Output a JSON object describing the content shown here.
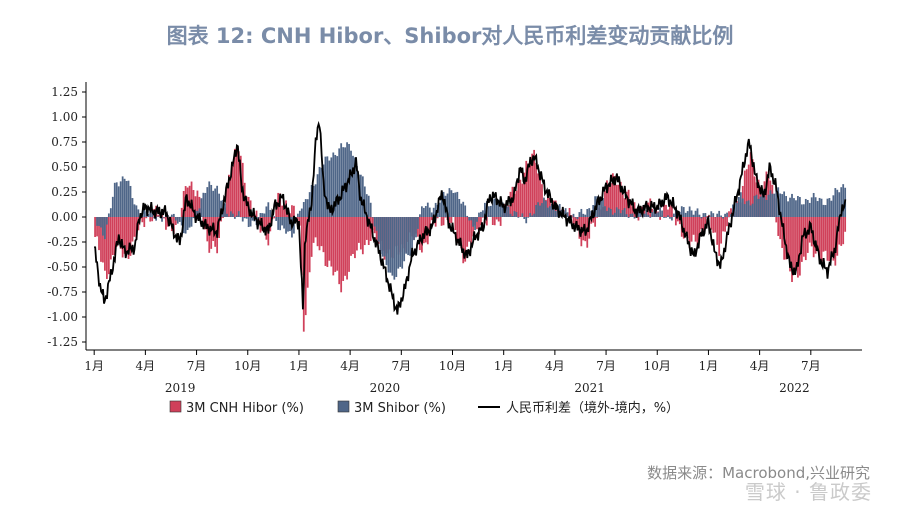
{
  "title": "图表 12:   CNH Hibor、Shibor对人民币利差变动贡献比例",
  "source": "数据来源：Macrobond,兴业研究",
  "watermark": "雪球 · 鲁政委",
  "colors": {
    "cnh": "#d0405a",
    "shibor": "#4f6688",
    "spread": "#000000"
  },
  "chart_data": {
    "type": "bar+line",
    "ylim": [
      -1.25,
      1.25
    ],
    "yticks": [
      "1.25",
      "1.00",
      "0.75",
      "0.50",
      "0.25",
      "0.00",
      "-0.25",
      "-0.50",
      "-0.75",
      "-1.00",
      "-1.25"
    ],
    "xticks": [
      "1月",
      "4月",
      "7月",
      "10月",
      "1月",
      "4月",
      "7月",
      "10月",
      "1月",
      "4月",
      "7月",
      "10月",
      "1月",
      "4月",
      "7月"
    ],
    "years": [
      "2019",
      "2020",
      "2021",
      "2022"
    ],
    "legend": [
      {
        "label": "3M CNH Hibor (%)",
        "kind": "bar",
        "color": "#d0405a"
      },
      {
        "label": "3M Shibor (%)",
        "kind": "bar",
        "color": "#4f6688"
      },
      {
        "label": "人民币利差（境外-境内，%）",
        "kind": "line",
        "color": "#000000"
      }
    ],
    "series": [
      {
        "name": "人民币利差（境外-境内，%）",
        "points": [
          [
            2019.0,
            -0.3
          ],
          [
            2019.03,
            -0.7
          ],
          [
            2019.05,
            -0.85
          ],
          [
            2019.08,
            -0.6
          ],
          [
            2019.12,
            -0.2
          ],
          [
            2019.15,
            -0.35
          ],
          [
            2019.2,
            -0.3
          ],
          [
            2019.22,
            0.0
          ],
          [
            2019.25,
            0.1
          ],
          [
            2019.3,
            0.05
          ],
          [
            2019.35,
            0.05
          ],
          [
            2019.4,
            -0.2
          ],
          [
            2019.42,
            -0.25
          ],
          [
            2019.45,
            0.2
          ],
          [
            2019.5,
            0.0
          ],
          [
            2019.55,
            -0.1
          ],
          [
            2019.6,
            -0.15
          ],
          [
            2019.65,
            0.3
          ],
          [
            2019.68,
            0.55
          ],
          [
            2019.7,
            0.75
          ],
          [
            2019.72,
            0.3
          ],
          [
            2019.75,
            0.1
          ],
          [
            2019.8,
            -0.05
          ],
          [
            2019.85,
            -0.15
          ],
          [
            2019.88,
            0.1
          ],
          [
            2019.92,
            0.2
          ],
          [
            2019.96,
            -0.05
          ],
          [
            2020.0,
            -0.05
          ],
          [
            2020.02,
            -0.95
          ],
          [
            2020.03,
            -0.2
          ],
          [
            2020.06,
            0.1
          ],
          [
            2020.08,
            0.7
          ],
          [
            2020.1,
            1.0
          ],
          [
            2020.12,
            0.3
          ],
          [
            2020.15,
            0.05
          ],
          [
            2020.2,
            0.2
          ],
          [
            2020.25,
            0.4
          ],
          [
            2020.28,
            0.55
          ],
          [
            2020.3,
            0.2
          ],
          [
            2020.35,
            -0.1
          ],
          [
            2020.4,
            -0.4
          ],
          [
            2020.45,
            -0.75
          ],
          [
            2020.48,
            -0.95
          ],
          [
            2020.52,
            -0.7
          ],
          [
            2020.55,
            -0.4
          ],
          [
            2020.6,
            -0.2
          ],
          [
            2020.65,
            -0.1
          ],
          [
            2020.7,
            0.25
          ],
          [
            2020.73,
            -0.05
          ],
          [
            2020.78,
            -0.25
          ],
          [
            2020.82,
            -0.4
          ],
          [
            2020.86,
            -0.2
          ],
          [
            2020.9,
            -0.1
          ],
          [
            2020.93,
            0.2
          ],
          [
            2020.96,
            0.2
          ],
          [
            2021.0,
            0.1
          ],
          [
            2021.05,
            0.2
          ],
          [
            2021.08,
            0.5
          ],
          [
            2021.1,
            0.35
          ],
          [
            2021.13,
            0.55
          ],
          [
            2021.15,
            0.6
          ],
          [
            2021.2,
            0.3
          ],
          [
            2021.25,
            0.1
          ],
          [
            2021.3,
            0.0
          ],
          [
            2021.35,
            -0.1
          ],
          [
            2021.4,
            -0.15
          ],
          [
            2021.45,
            0.1
          ],
          [
            2021.5,
            0.3
          ],
          [
            2021.55,
            0.4
          ],
          [
            2021.6,
            0.2
          ],
          [
            2021.65,
            0.05
          ],
          [
            2021.7,
            0.1
          ],
          [
            2021.75,
            0.1
          ],
          [
            2021.8,
            0.2
          ],
          [
            2021.85,
            0.05
          ],
          [
            2021.9,
            -0.25
          ],
          [
            2021.93,
            -0.4
          ],
          [
            2021.96,
            -0.2
          ],
          [
            2022.0,
            -0.05
          ],
          [
            2022.03,
            -0.35
          ],
          [
            2022.06,
            -0.5
          ],
          [
            2022.08,
            -0.3
          ],
          [
            2022.12,
            0.05
          ],
          [
            2022.15,
            0.3
          ],
          [
            2022.18,
            0.6
          ],
          [
            2022.2,
            0.75
          ],
          [
            2022.23,
            0.4
          ],
          [
            2022.27,
            0.2
          ],
          [
            2022.3,
            0.5
          ],
          [
            2022.33,
            0.3
          ],
          [
            2022.37,
            -0.2
          ],
          [
            2022.4,
            -0.5
          ],
          [
            2022.43,
            -0.55
          ],
          [
            2022.46,
            -0.2
          ],
          [
            2022.5,
            -0.1
          ],
          [
            2022.54,
            -0.4
          ],
          [
            2022.58,
            -0.55
          ],
          [
            2022.62,
            -0.3
          ],
          [
            2022.65,
            0.1
          ],
          [
            2022.67,
            0.1
          ]
        ]
      },
      {
        "name": "3M CNH Hibor (%)",
        "points": [
          [
            2019.0,
            -0.2
          ],
          [
            2019.05,
            -0.6
          ],
          [
            2019.1,
            -0.3
          ],
          [
            2019.15,
            -0.4
          ],
          [
            2019.2,
            -0.2
          ],
          [
            2019.25,
            0.0
          ],
          [
            2019.3,
            0.05
          ],
          [
            2019.4,
            -0.15
          ],
          [
            2019.45,
            0.4
          ],
          [
            2019.5,
            0.2
          ],
          [
            2019.55,
            -0.25
          ],
          [
            2019.6,
            -0.35
          ],
          [
            2019.65,
            0.4
          ],
          [
            2019.7,
            0.7
          ],
          [
            2019.75,
            0.2
          ],
          [
            2019.8,
            -0.1
          ],
          [
            2019.85,
            -0.2
          ],
          [
            2019.9,
            0.2
          ],
          [
            2019.96,
            0.1
          ],
          [
            2020.0,
            -0.15
          ],
          [
            2020.02,
            -1.1
          ],
          [
            2020.06,
            -0.3
          ],
          [
            2020.1,
            -0.3
          ],
          [
            2020.15,
            -0.5
          ],
          [
            2020.2,
            -0.7
          ],
          [
            2020.25,
            -0.45
          ],
          [
            2020.3,
            -0.3
          ],
          [
            2020.35,
            -0.2
          ],
          [
            2020.4,
            -0.3
          ],
          [
            2020.45,
            -0.4
          ],
          [
            2020.5,
            -0.3
          ],
          [
            2020.55,
            -0.2
          ],
          [
            2020.6,
            -0.3
          ],
          [
            2020.65,
            -0.1
          ],
          [
            2020.7,
            0.0
          ],
          [
            2020.75,
            -0.1
          ],
          [
            2020.8,
            -0.4
          ],
          [
            2020.85,
            -0.2
          ],
          [
            2020.9,
            0.0
          ],
          [
            2020.96,
            -0.1
          ],
          [
            2021.0,
            0.1
          ],
          [
            2021.05,
            0.25
          ],
          [
            2021.1,
            0.5
          ],
          [
            2021.15,
            0.6
          ],
          [
            2021.2,
            0.2
          ],
          [
            2021.25,
            0.1
          ],
          [
            2021.3,
            0.05
          ],
          [
            2021.35,
            -0.1
          ],
          [
            2021.4,
            -0.3
          ],
          [
            2021.45,
            0.0
          ],
          [
            2021.5,
            0.3
          ],
          [
            2021.55,
            0.4
          ],
          [
            2021.6,
            0.2
          ],
          [
            2021.65,
            0.05
          ],
          [
            2021.7,
            0.1
          ],
          [
            2021.75,
            0.05
          ],
          [
            2021.8,
            0.1
          ],
          [
            2021.85,
            -0.05
          ],
          [
            2021.9,
            -0.3
          ],
          [
            2021.96,
            -0.15
          ],
          [
            2022.0,
            -0.05
          ],
          [
            2022.05,
            -0.3
          ],
          [
            2022.1,
            0.0
          ],
          [
            2022.15,
            0.2
          ],
          [
            2022.2,
            0.6
          ],
          [
            2022.25,
            0.3
          ],
          [
            2022.3,
            0.4
          ],
          [
            2022.35,
            -0.3
          ],
          [
            2022.4,
            -0.6
          ],
          [
            2022.45,
            -0.5
          ],
          [
            2022.5,
            -0.3
          ],
          [
            2022.55,
            -0.4
          ],
          [
            2022.6,
            -0.45
          ],
          [
            2022.65,
            -0.25
          ],
          [
            2022.67,
            -0.2
          ]
        ]
      },
      {
        "name": "3M Shibor (%)",
        "points": [
          [
            2019.0,
            0.0
          ],
          [
            2019.05,
            -0.2
          ],
          [
            2019.1,
            0.35
          ],
          [
            2019.15,
            0.4
          ],
          [
            2019.2,
            0.1
          ],
          [
            2019.25,
            0.05
          ],
          [
            2019.3,
            0.0
          ],
          [
            2019.4,
            0.0
          ],
          [
            2019.45,
            -0.2
          ],
          [
            2019.5,
            0.1
          ],
          [
            2019.55,
            0.3
          ],
          [
            2019.6,
            0.3
          ],
          [
            2019.65,
            0.0
          ],
          [
            2019.7,
            0.05
          ],
          [
            2019.75,
            -0.1
          ],
          [
            2019.8,
            0.0
          ],
          [
            2019.85,
            0.1
          ],
          [
            2019.9,
            -0.1
          ],
          [
            2019.96,
            -0.2
          ],
          [
            2020.0,
            0.1
          ],
          [
            2020.02,
            0.1
          ],
          [
            2020.06,
            0.3
          ],
          [
            2020.1,
            0.5
          ],
          [
            2020.15,
            0.6
          ],
          [
            2020.2,
            0.7
          ],
          [
            2020.25,
            0.7
          ],
          [
            2020.3,
            0.4
          ],
          [
            2020.35,
            0.1
          ],
          [
            2020.4,
            -0.4
          ],
          [
            2020.45,
            -0.6
          ],
          [
            2020.5,
            -0.5
          ],
          [
            2020.55,
            -0.3
          ],
          [
            2020.6,
            0.1
          ],
          [
            2020.65,
            0.1
          ],
          [
            2020.7,
            0.2
          ],
          [
            2020.75,
            0.3
          ],
          [
            2020.8,
            0.1
          ],
          [
            2020.85,
            -0.1
          ],
          [
            2020.9,
            0.1
          ],
          [
            2020.96,
            0.2
          ],
          [
            2021.0,
            0.1
          ],
          [
            2021.05,
            0.05
          ],
          [
            2021.1,
            -0.05
          ],
          [
            2021.15,
            0.1
          ],
          [
            2021.2,
            0.15
          ],
          [
            2021.25,
            0.1
          ],
          [
            2021.3,
            0.05
          ],
          [
            2021.35,
            0.0
          ],
          [
            2021.4,
            0.05
          ],
          [
            2021.45,
            0.2
          ],
          [
            2021.5,
            0.1
          ],
          [
            2021.55,
            0.05
          ],
          [
            2021.6,
            0.05
          ],
          [
            2021.65,
            0.0
          ],
          [
            2021.7,
            0.05
          ],
          [
            2021.75,
            0.05
          ],
          [
            2021.8,
            0.0
          ],
          [
            2021.85,
            0.05
          ],
          [
            2021.9,
            0.1
          ],
          [
            2021.96,
            0.0
          ],
          [
            2022.0,
            0.05
          ],
          [
            2022.05,
            0.0
          ],
          [
            2022.1,
            0.05
          ],
          [
            2022.15,
            0.2
          ],
          [
            2022.2,
            0.15
          ],
          [
            2022.25,
            0.2
          ],
          [
            2022.3,
            0.25
          ],
          [
            2022.35,
            0.25
          ],
          [
            2022.4,
            0.2
          ],
          [
            2022.45,
            0.15
          ],
          [
            2022.5,
            0.2
          ],
          [
            2022.55,
            0.15
          ],
          [
            2022.6,
            0.2
          ],
          [
            2022.65,
            0.3
          ],
          [
            2022.67,
            0.35
          ]
        ]
      }
    ]
  }
}
